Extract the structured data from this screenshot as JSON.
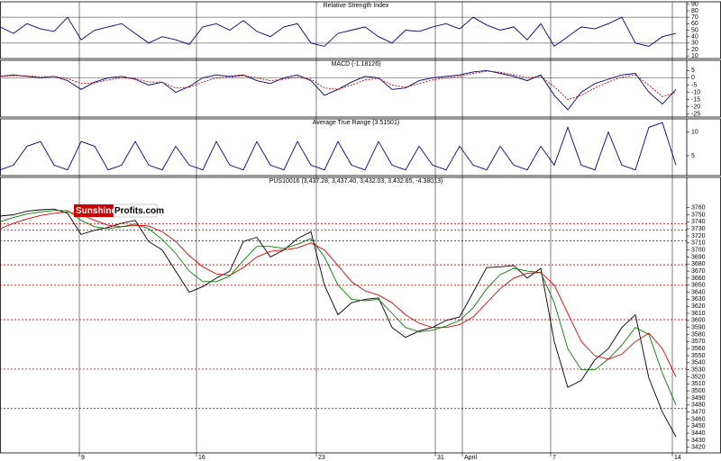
{
  "logo": {
    "part1": "Sunshine",
    "part2": "Profits.com"
  },
  "chart_data": [
    {
      "type": "line",
      "title": "Relative Strength Index",
      "x": [
        0,
        15,
        30,
        45,
        60,
        75,
        90,
        105,
        120,
        135,
        150,
        165,
        180,
        195,
        210,
        225,
        240,
        255,
        270,
        285,
        300,
        315,
        330,
        345,
        360,
        375,
        390,
        405,
        420,
        435,
        450,
        465,
        480,
        495,
        510,
        525,
        540,
        555,
        570,
        585,
        600,
        615,
        630,
        645,
        660,
        675,
        690,
        705,
        720,
        735,
        750
      ],
      "xlim": [
        0,
        762
      ],
      "ylim": [
        6,
        94
      ],
      "yticks": [
        90,
        80,
        70,
        60,
        50,
        40,
        30,
        20,
        10
      ],
      "reference_lines": [
        70,
        30
      ],
      "reference_color": "#808080",
      "series": [
        {
          "color": "#000080",
          "values": [
            55,
            45,
            60,
            52,
            48,
            70,
            35,
            50,
            55,
            60,
            45,
            30,
            40,
            35,
            28,
            55,
            60,
            50,
            65,
            48,
            40,
            55,
            60,
            30,
            25,
            45,
            50,
            55,
            40,
            30,
            50,
            48,
            55,
            60,
            52,
            70,
            58,
            50,
            55,
            35,
            60,
            25,
            40,
            55,
            52,
            60,
            70,
            30,
            25,
            40,
            45
          ]
        }
      ]
    },
    {
      "type": "line",
      "title": "MACD (-1.18126)",
      "x": [
        0,
        15,
        30,
        45,
        60,
        75,
        90,
        105,
        120,
        135,
        150,
        165,
        180,
        195,
        210,
        225,
        240,
        255,
        270,
        285,
        300,
        315,
        330,
        345,
        360,
        375,
        390,
        405,
        420,
        435,
        450,
        465,
        480,
        495,
        510,
        525,
        540,
        555,
        570,
        585,
        600,
        615,
        630,
        645,
        660,
        675,
        690,
        705,
        720,
        735,
        750
      ],
      "xlim": [
        0,
        762
      ],
      "ylim": [
        -27,
        12
      ],
      "yticks": [
        5,
        0,
        -5,
        -10,
        -15,
        -20,
        -25
      ],
      "reference_lines": [
        0
      ],
      "reference_color": "#808080",
      "series": [
        {
          "color": "#000080",
          "values": [
            1,
            2,
            1,
            0,
            1,
            -2,
            -8,
            -3,
            0,
            1,
            -1,
            -5,
            -3,
            -10,
            -6,
            0,
            2,
            1,
            2,
            -2,
            -4,
            0,
            2,
            -2,
            -12,
            -8,
            -3,
            1,
            0,
            -8,
            -7,
            -2,
            0,
            1,
            2,
            4,
            5,
            3,
            1,
            -2,
            2,
            -12,
            -22,
            -10,
            -4,
            -1,
            2,
            3,
            -10,
            -18,
            -8
          ]
        },
        {
          "color": "#c00000",
          "dashed": true,
          "values": [
            1,
            1.5,
            1.3,
            0.6,
            0.8,
            -0.5,
            -4,
            -3.5,
            -1.5,
            0,
            -0.5,
            -3,
            -3,
            -7,
            -6.5,
            -3,
            0,
            0.5,
            1.5,
            0,
            -2,
            -1,
            0.5,
            -1,
            -7,
            -8,
            -5,
            -1.5,
            -0.5,
            -5,
            -6.5,
            -4,
            -1.5,
            0,
            1,
            3,
            4.5,
            3.8,
            2,
            0,
            1,
            -6,
            -15,
            -12,
            -7,
            -3,
            0.5,
            2,
            -5,
            -13,
            -10
          ]
        }
      ]
    },
    {
      "type": "line",
      "title": "Average True Range (3.51501)",
      "x": [
        0,
        15,
        30,
        45,
        60,
        75,
        90,
        105,
        120,
        135,
        150,
        165,
        180,
        195,
        210,
        225,
        240,
        255,
        270,
        285,
        300,
        315,
        330,
        345,
        360,
        375,
        390,
        405,
        420,
        435,
        450,
        465,
        480,
        495,
        510,
        525,
        540,
        555,
        570,
        585,
        600,
        615,
        630,
        645,
        660,
        675,
        690,
        705,
        720,
        735,
        750
      ],
      "xlim": [
        0,
        762
      ],
      "ylim": [
        0.8,
        12.8
      ],
      "yticks": [
        10,
        5
      ],
      "series": [
        {
          "color": "#000080",
          "values": [
            2,
            3,
            7,
            8,
            3,
            2,
            8,
            7,
            2,
            3,
            8,
            3,
            2,
            7,
            3,
            2,
            8,
            3,
            2,
            8,
            3,
            2,
            8,
            3,
            2,
            8,
            3,
            2,
            8,
            3,
            2,
            7,
            3,
            2,
            7,
            3,
            2,
            7,
            3,
            2,
            7,
            3,
            11,
            3,
            2,
            10,
            3,
            2,
            11,
            12,
            3
          ]
        }
      ]
    },
    {
      "type": "line",
      "title": "PUS10016 (3,437.28, 3,437.40, 3,432.03, 3,432.65, -4.38013)",
      "x": [
        0,
        15,
        30,
        45,
        60,
        75,
        90,
        105,
        120,
        135,
        150,
        165,
        180,
        195,
        210,
        225,
        240,
        255,
        270,
        285,
        300,
        315,
        330,
        345,
        360,
        375,
        390,
        405,
        420,
        435,
        450,
        465,
        480,
        495,
        510,
        525,
        540,
        555,
        570,
        585,
        600,
        615,
        630,
        645,
        660,
        675,
        690,
        705,
        720,
        735,
        750
      ],
      "xlim": [
        0,
        762
      ],
      "ylim": [
        3412,
        3803
      ],
      "yticks": [
        3760,
        3750,
        3740,
        3730,
        3720,
        3710,
        3700,
        3690,
        3680,
        3670,
        3660,
        3650,
        3640,
        3630,
        3620,
        3610,
        3600,
        3590,
        3580,
        3570,
        3560,
        3550,
        3540,
        3530,
        3520,
        3510,
        3500,
        3490,
        3480,
        3470,
        3460,
        3450,
        3440,
        3430,
        3420
      ],
      "xticks": [
        {
          "value": 88,
          "label": "9"
        },
        {
          "value": 218,
          "label": "16"
        },
        {
          "value": 351,
          "label": "23"
        },
        {
          "value": 483,
          "label": "31"
        },
        {
          "value": 513,
          "label": "April"
        },
        {
          "value": 611,
          "label": "7"
        },
        {
          "value": 746,
          "label": "14"
        }
      ],
      "reference_lines": [
        3737,
        3728,
        3713,
        3679,
        3650,
        3601,
        3531,
        3475
      ],
      "reference_color": "#cc0000",
      "reference_dashed": true,
      "series": [
        {
          "color": "#000000",
          "values": [
            3748,
            3750,
            3755,
            3757,
            3758,
            3752,
            3722,
            3728,
            3732,
            3738,
            3742,
            3712,
            3700,
            3670,
            3640,
            3648,
            3660,
            3670,
            3712,
            3718,
            3690,
            3700,
            3716,
            3726,
            3650,
            3608,
            3625,
            3630,
            3632,
            3590,
            3576,
            3585,
            3590,
            3600,
            3605,
            3640,
            3675,
            3676,
            3678,
            3660,
            3674,
            3570,
            3505,
            3515,
            3544,
            3560,
            3590,
            3608,
            3518,
            3470,
            3435
          ]
        },
        {
          "color": "#008000",
          "values": [
            3740,
            3746,
            3751,
            3754,
            3756,
            3756,
            3742,
            3733,
            3730,
            3733,
            3737,
            3730,
            3715,
            3695,
            3670,
            3655,
            3655,
            3663,
            3685,
            3705,
            3705,
            3702,
            3708,
            3716,
            3690,
            3650,
            3630,
            3628,
            3630,
            3610,
            3590,
            3584,
            3586,
            3592,
            3600,
            3618,
            3645,
            3665,
            3674,
            3670,
            3668,
            3625,
            3560,
            3530,
            3530,
            3545,
            3565,
            3590,
            3580,
            3525,
            3480
          ]
        },
        {
          "color": "#e00000",
          "values": [
            3730,
            3738,
            3744,
            3749,
            3752,
            3754,
            3750,
            3742,
            3735,
            3733,
            3735,
            3734,
            3726,
            3712,
            3692,
            3676,
            3666,
            3664,
            3675,
            3690,
            3698,
            3700,
            3703,
            3710,
            3700,
            3678,
            3655,
            3642,
            3636,
            3625,
            3608,
            3596,
            3590,
            3590,
            3594,
            3605,
            3625,
            3645,
            3660,
            3667,
            3668,
            3650,
            3610,
            3570,
            3550,
            3545,
            3552,
            3570,
            3582,
            3560,
            3520
          ]
        }
      ]
    }
  ]
}
